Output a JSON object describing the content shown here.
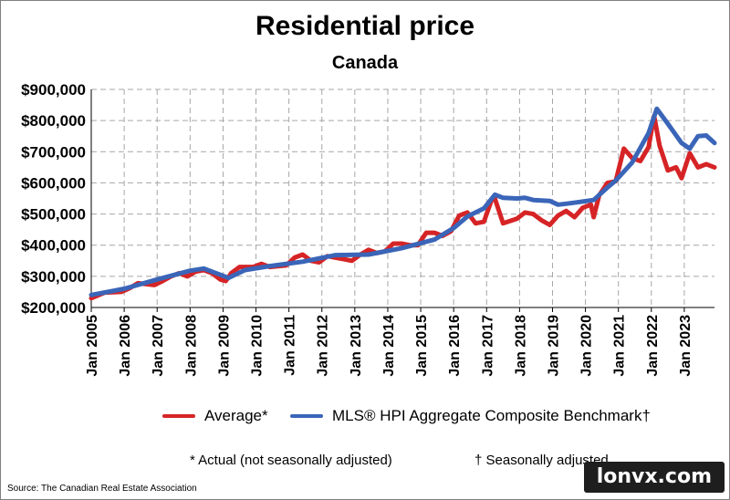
{
  "page": {
    "source": "Source: The Canadian Real Estate Association",
    "note_average": "* Actual (not seasonally adjusted)",
    "note_hpi": "† Seasonally adjusted",
    "watermark": "lonvx.com"
  },
  "chart_data": {
    "type": "line",
    "title": "Residential price",
    "subtitle": "Canada",
    "xlabel": "",
    "ylabel": "",
    "x_tick_labels": [
      "Jan 2005",
      "Jan 2006",
      "Jan 2007",
      "Jan 2008",
      "Jan 2009",
      "Jan 2010",
      "Jan 2011",
      "Jan 2012",
      "Jan 2013",
      "Jan 2014",
      "Jan 2015",
      "Jan 2016",
      "Jan 2017",
      "Jan 2018",
      "Jan 2019",
      "Jan 2020",
      "Jan 2021",
      "Jan 2022",
      "Jan 2023"
    ],
    "y_tick_labels": [
      "$200,000",
      "$300,000",
      "$400,000",
      "$500,000",
      "$600,000",
      "$700,000",
      "$800,000",
      "$900,000"
    ],
    "xlim": [
      "Jan 2005",
      "Dec 2023"
    ],
    "ylim": [
      200000,
      900000
    ],
    "grid": true,
    "legend_position": "bottom",
    "series": [
      {
        "name": "Average*",
        "color": "#d62426",
        "points": [
          [
            "2005-01",
            230000
          ],
          [
            "2005-06",
            248000
          ],
          [
            "2005-12",
            250000
          ],
          [
            "2006-03",
            262000
          ],
          [
            "2006-06",
            278000
          ],
          [
            "2006-12",
            272000
          ],
          [
            "2007-03",
            285000
          ],
          [
            "2007-06",
            300000
          ],
          [
            "2007-09",
            310000
          ],
          [
            "2007-12",
            300000
          ],
          [
            "2008-03",
            315000
          ],
          [
            "2008-06",
            320000
          ],
          [
            "2008-09",
            310000
          ],
          [
            "2008-12",
            290000
          ],
          [
            "2009-02",
            285000
          ],
          [
            "2009-04",
            310000
          ],
          [
            "2009-07",
            330000
          ],
          [
            "2009-12",
            330000
          ],
          [
            "2010-03",
            340000
          ],
          [
            "2010-06",
            330000
          ],
          [
            "2010-12",
            335000
          ],
          [
            "2011-03",
            360000
          ],
          [
            "2011-06",
            370000
          ],
          [
            "2011-09",
            350000
          ],
          [
            "2011-12",
            345000
          ],
          [
            "2012-03",
            365000
          ],
          [
            "2012-06",
            360000
          ],
          [
            "2012-09",
            355000
          ],
          [
            "2012-12",
            350000
          ],
          [
            "2013-03",
            370000
          ],
          [
            "2013-06",
            385000
          ],
          [
            "2013-09",
            375000
          ],
          [
            "2013-12",
            380000
          ],
          [
            "2014-03",
            405000
          ],
          [
            "2014-06",
            405000
          ],
          [
            "2014-09",
            400000
          ],
          [
            "2014-12",
            400000
          ],
          [
            "2015-03",
            440000
          ],
          [
            "2015-06",
            440000
          ],
          [
            "2015-09",
            430000
          ],
          [
            "2015-12",
            445000
          ],
          [
            "2016-03",
            495000
          ],
          [
            "2016-06",
            505000
          ],
          [
            "2016-09",
            470000
          ],
          [
            "2016-12",
            475000
          ],
          [
            "2017-03",
            550000
          ],
          [
            "2017-04",
            550000
          ],
          [
            "2017-07",
            470000
          ],
          [
            "2017-12",
            485000
          ],
          [
            "2018-03",
            505000
          ],
          [
            "2018-06",
            500000
          ],
          [
            "2018-09",
            480000
          ],
          [
            "2018-12",
            465000
          ],
          [
            "2019-03",
            495000
          ],
          [
            "2019-06",
            510000
          ],
          [
            "2019-09",
            490000
          ],
          [
            "2019-12",
            520000
          ],
          [
            "2020-03",
            530000
          ],
          [
            "2020-04",
            490000
          ],
          [
            "2020-06",
            560000
          ],
          [
            "2020-09",
            600000
          ],
          [
            "2020-12",
            605000
          ],
          [
            "2021-03",
            710000
          ],
          [
            "2021-06",
            680000
          ],
          [
            "2021-09",
            670000
          ],
          [
            "2021-12",
            715000
          ],
          [
            "2022-02",
            815000
          ],
          [
            "2022-04",
            720000
          ],
          [
            "2022-07",
            640000
          ],
          [
            "2022-10",
            650000
          ],
          [
            "2022-12",
            615000
          ],
          [
            "2023-03",
            695000
          ],
          [
            "2023-06",
            650000
          ],
          [
            "2023-09",
            660000
          ],
          [
            "2023-12",
            650000
          ]
        ]
      },
      {
        "name": "MLS® HPI Aggregate Composite Benchmark†",
        "color": "#3a65b8",
        "points": [
          [
            "2005-01",
            240000
          ],
          [
            "2006-01",
            260000
          ],
          [
            "2007-01",
            290000
          ],
          [
            "2008-01",
            318000
          ],
          [
            "2008-06",
            325000
          ],
          [
            "2009-03",
            295000
          ],
          [
            "2009-09",
            320000
          ],
          [
            "2010-06",
            333000
          ],
          [
            "2011-06",
            347000
          ],
          [
            "2012-06",
            368000
          ],
          [
            "2013-06",
            370000
          ],
          [
            "2014-06",
            390000
          ],
          [
            "2015-06",
            418000
          ],
          [
            "2016-01",
            455000
          ],
          [
            "2016-06",
            492000
          ],
          [
            "2016-12",
            518000
          ],
          [
            "2017-04",
            562000
          ],
          [
            "2017-07",
            552000
          ],
          [
            "2017-12",
            550000
          ],
          [
            "2018-03",
            552000
          ],
          [
            "2018-06",
            545000
          ],
          [
            "2018-12",
            542000
          ],
          [
            "2019-03",
            530000
          ],
          [
            "2019-06",
            533000
          ],
          [
            "2019-12",
            540000
          ],
          [
            "2020-04",
            545000
          ],
          [
            "2020-09",
            585000
          ],
          [
            "2020-12",
            607000
          ],
          [
            "2021-06",
            665000
          ],
          [
            "2021-12",
            760000
          ],
          [
            "2022-03",
            838000
          ],
          [
            "2022-07",
            790000
          ],
          [
            "2022-12",
            728000
          ],
          [
            "2023-03",
            710000
          ],
          [
            "2023-06",
            750000
          ],
          [
            "2023-09",
            752000
          ],
          [
            "2023-12",
            728000
          ]
        ]
      }
    ]
  }
}
